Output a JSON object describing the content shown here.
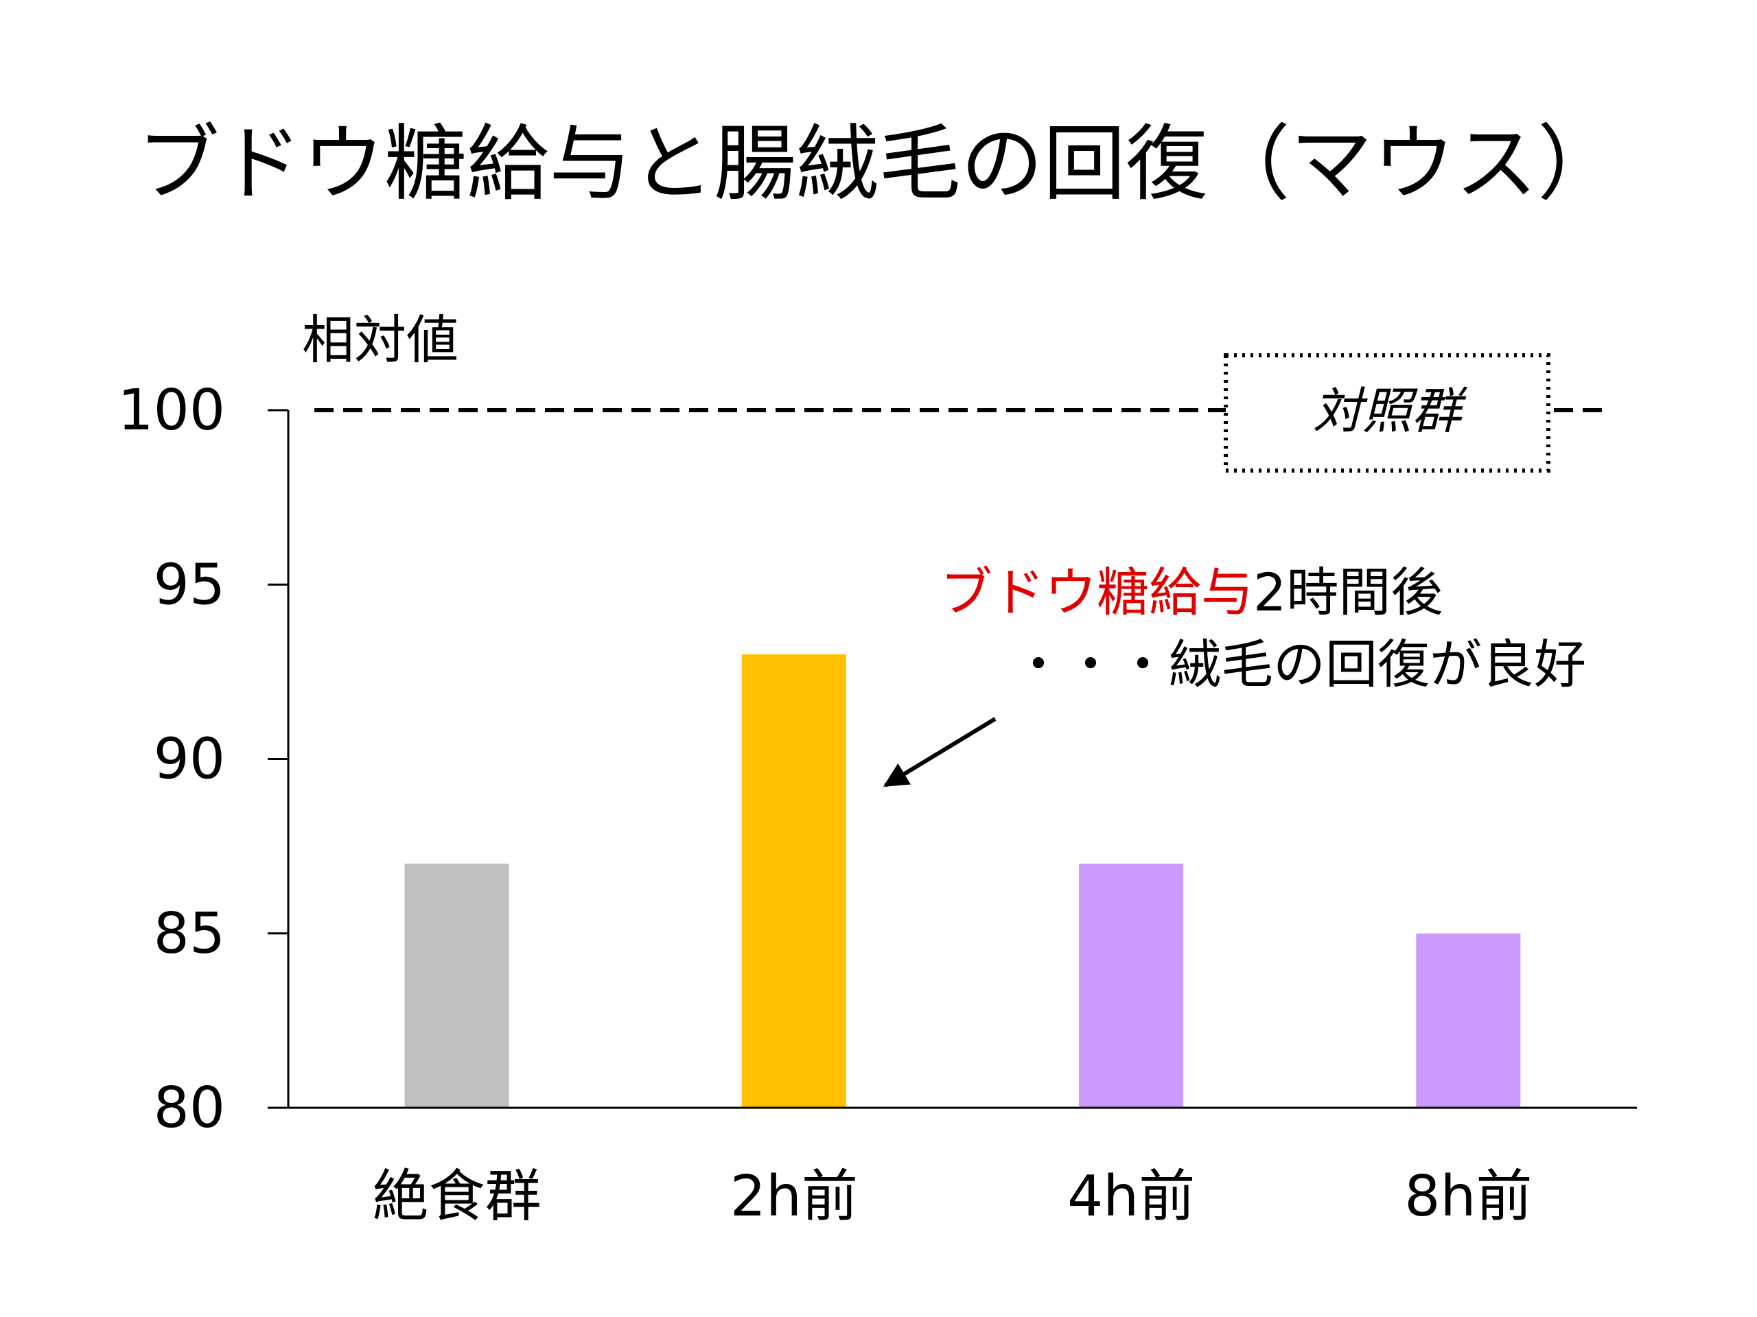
{
  "chart_data": {
    "type": "bar",
    "title": "ブドウ糖給与と腸絨毛の回復（マウス）",
    "ylabel": "相対値",
    "xlabel": "",
    "ylim": [
      80,
      100
    ],
    "yticks": [
      80,
      85,
      90,
      95,
      100
    ],
    "grid": false,
    "categories": [
      "絶食群",
      "2h前",
      "4h前",
      "8h前"
    ],
    "values": [
      87,
      93,
      87,
      85
    ],
    "colors": [
      "#bfbfbf",
      "#ffc000",
      "#cc99ff",
      "#cc99ff"
    ],
    "reference_line": {
      "value": 100,
      "label": "対照群",
      "style": "dashed"
    },
    "annotation": {
      "highlight": "ブドウ糖給与",
      "highlight_color": "#e00000",
      "line1_rest": "2時間後",
      "line2": "・・・絨毛の回復が良好",
      "points_to_category": "2h前"
    }
  }
}
